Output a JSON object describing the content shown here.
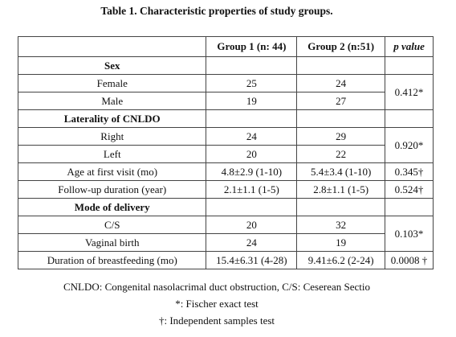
{
  "title": "Table 1. Characteristic properties of study groups.",
  "table": {
    "header": [
      "Group 1 (n: 44)",
      "Group 2 (n:51)",
      "p value"
    ],
    "rows": [
      {
        "section": "Sex"
      },
      {
        "label": "Female",
        "group1": "25",
        "group2": "24",
        "p": "0.412*"
      },
      {
        "label": "Male",
        "group1": "19",
        "group2": "27"
      },
      {
        "section": "Laterality of CNLDO"
      },
      {
        "label": "Right",
        "group1": "24",
        "group2": "29",
        "p": "0.920*"
      },
      {
        "label": "Left",
        "group1": "20",
        "group2": "22"
      },
      {
        "label": "Age at first visit (mo)",
        "group1": "4.8±2.9 (1-10)",
        "group2": "5.4±3.4 (1-10)",
        "p": "0.345†"
      },
      {
        "label": "Follow-up duration (year)",
        "group1": "2.1±1.1 (1-5)",
        "group2": "2.8±1.1 (1-5)",
        "p": "0.524†"
      },
      {
        "section": "Mode of delivery"
      },
      {
        "label": "C/S",
        "group1": "20",
        "group2": "32",
        "p": "0.103*"
      },
      {
        "label": "Vaginal birth",
        "group1": "24",
        "group2": "19"
      },
      {
        "label": "Duration of breastfeeding (mo)",
        "group1": "15.4±6.31 (4-28)",
        "group2": "9.41±6.2 (2-24)",
        "p": "0.0008 †"
      }
    ]
  },
  "footnotes": [
    "CNLDO: Congenital nasolacrimal duct obstruction, C/S: Ceserean Sectio",
    "*: Fischer exact test",
    "†: Independent samples test"
  ]
}
